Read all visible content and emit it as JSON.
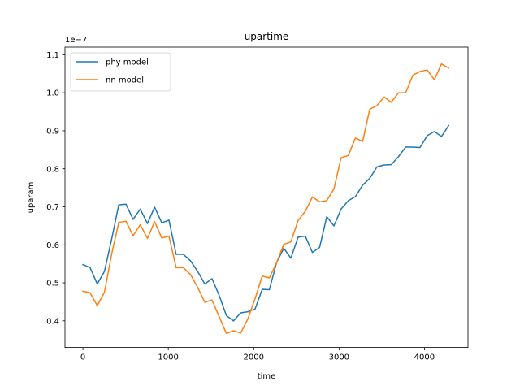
{
  "chart_data": {
    "type": "line",
    "title": "upartime",
    "xlabel": "time",
    "ylabel": "uparam",
    "offset_text": "1e−7",
    "xlim": [
      -210,
      4510
    ],
    "ylim": [
      0.33,
      1.12
    ],
    "xticks": [
      0,
      1000,
      2000,
      3000,
      4000
    ],
    "xtick_labels": [
      "0",
      "1000",
      "2000",
      "3000",
      "4000"
    ],
    "yticks": [
      0.4,
      0.5,
      0.6,
      0.7,
      0.8,
      0.9,
      1.0,
      1.1
    ],
    "ytick_labels": [
      "0.4",
      "0.5",
      "0.6",
      "0.7",
      "0.8",
      "0.9",
      "1.0",
      "1.1"
    ],
    "grid": false,
    "legend_position": "top-left",
    "x": [
      0,
      84,
      168,
      252,
      336,
      420,
      504,
      588,
      672,
      756,
      840,
      924,
      1008,
      1092,
      1176,
      1260,
      1344,
      1428,
      1512,
      1596,
      1680,
      1764,
      1848,
      1932,
      2016,
      2100,
      2184,
      2268,
      2352,
      2436,
      2520,
      2604,
      2688,
      2772,
      2856,
      2940,
      3024,
      3108,
      3192,
      3276,
      3360,
      3444,
      3528,
      3612,
      3696,
      3780,
      3864,
      3948,
      4032,
      4116,
      4200,
      4284
    ],
    "series": [
      {
        "name": "phy model",
        "color": "#1f77b4",
        "values": [
          0.548,
          0.54,
          0.497,
          0.53,
          0.614,
          0.705,
          0.707,
          0.667,
          0.694,
          0.656,
          0.699,
          0.658,
          0.665,
          0.575,
          0.575,
          0.558,
          0.53,
          0.497,
          0.511,
          0.467,
          0.414,
          0.4,
          0.421,
          0.424,
          0.431,
          0.483,
          0.482,
          0.553,
          0.591,
          0.565,
          0.62,
          0.623,
          0.58,
          0.593,
          0.674,
          0.65,
          0.694,
          0.716,
          0.727,
          0.757,
          0.775,
          0.805,
          0.81,
          0.811,
          0.832,
          0.857,
          0.857,
          0.856,
          0.887,
          0.898,
          0.885,
          0.914
        ]
      },
      {
        "name": "nn model",
        "color": "#ff7f0e",
        "values": [
          0.478,
          0.474,
          0.44,
          0.475,
          0.575,
          0.659,
          0.662,
          0.624,
          0.653,
          0.617,
          0.661,
          0.618,
          0.623,
          0.54,
          0.54,
          0.522,
          0.488,
          0.449,
          0.455,
          0.411,
          0.367,
          0.374,
          0.368,
          0.405,
          0.458,
          0.518,
          0.513,
          0.553,
          0.601,
          0.608,
          0.664,
          0.688,
          0.726,
          0.713,
          0.716,
          0.747,
          0.829,
          0.835,
          0.881,
          0.872,
          0.957,
          0.966,
          0.989,
          0.975,
          1.0,
          1.0,
          1.046,
          1.056,
          1.06,
          1.034,
          1.076,
          1.065
        ]
      }
    ]
  }
}
